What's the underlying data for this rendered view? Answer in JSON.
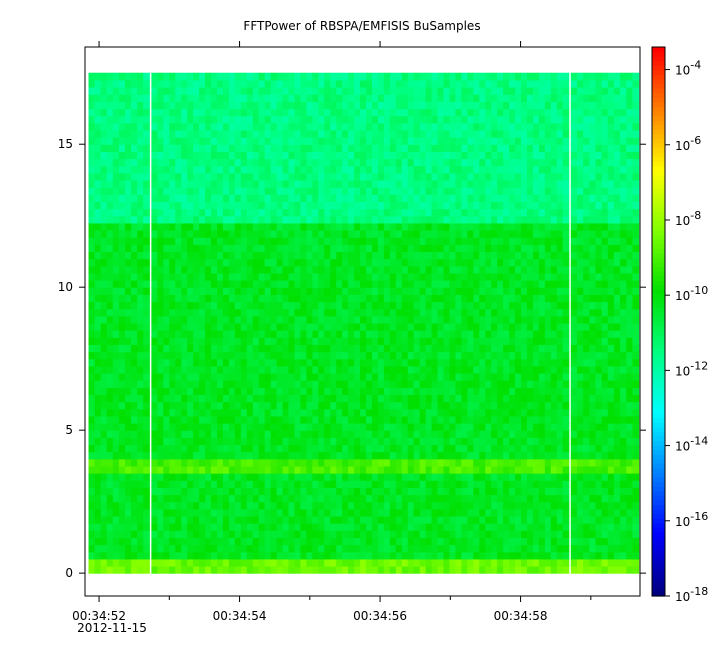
{
  "chart_data": {
    "type": "heatmap",
    "title": "FFTPower of RBSPA/EMFISIS  BuSamples",
    "xlabel": "",
    "ylabel": "",
    "x_date_label": "2012-11-15",
    "x_ticks": [
      "00:34:52",
      "00:34:54",
      "00:34:56",
      "00:34:58"
    ],
    "x_tick_values": [
      52,
      54,
      56,
      58
    ],
    "x_minor_tick_values": [
      53,
      55,
      57,
      59
    ],
    "xlim": [
      51.8,
      59.7
    ],
    "y_ticks": [
      "0",
      "5",
      "10",
      "15"
    ],
    "y_tick_values": [
      0,
      5,
      10,
      15
    ],
    "ylim": [
      -0.8,
      18.4
    ],
    "data_ymax": 17.5,
    "gaps": [
      52.73,
      58.7
    ],
    "bands": [
      {
        "y0": 0.0,
        "y1": 0.6,
        "value_exp": -8.5
      },
      {
        "y0": 3.5,
        "y1": 4.0,
        "value_exp": -9.0
      },
      {
        "y0": 0.6,
        "y1": 12.3,
        "value_exp": -10.3
      },
      {
        "y0": 12.3,
        "y1": 17.5,
        "value_exp": -11.5
      }
    ],
    "colorbar": {
      "scale": "log",
      "min_exp": -18,
      "max_exp": -3.4,
      "tick_exps": [
        -18,
        -16,
        -14,
        -12,
        -10,
        -8,
        -6,
        -4
      ],
      "tick_labels": [
        "10-18",
        "10-16",
        "10-14",
        "10-12",
        "10-10",
        "10-8",
        "10-6",
        "10-4"
      ],
      "colormap": [
        "#00007f",
        "#0000ff",
        "#0080ff",
        "#00ffff",
        "#00ff80",
        "#00e000",
        "#80ff00",
        "#ffff00",
        "#ff8000",
        "#ff0000"
      ]
    }
  }
}
